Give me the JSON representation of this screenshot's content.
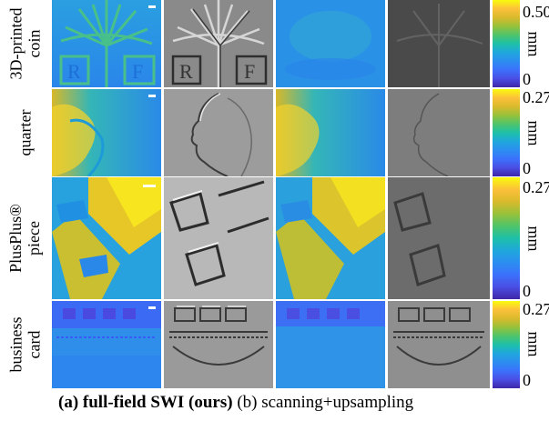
{
  "figure": {
    "rows": [
      {
        "id": "coin",
        "label_lines": [
          "3D-printed",
          "coin"
        ],
        "cbar_max": "0.50",
        "cbar_min": "0",
        "unit": "mm"
      },
      {
        "id": "quarter",
        "label_lines": [
          "quarter"
        ],
        "cbar_max": "0.27",
        "cbar_min": "0",
        "unit": "mm"
      },
      {
        "id": "plusplus",
        "label_lines": [
          "PlusPlus®",
          "piece"
        ],
        "cbar_max": "0.27",
        "cbar_min": "0",
        "unit": "mm"
      },
      {
        "id": "card",
        "label_lines": [
          "business",
          "card"
        ],
        "cbar_max": "0.27",
        "cbar_min": "0",
        "unit": "mm"
      }
    ],
    "caption": {
      "part_a": "(a) full-field SWI (ours)",
      "part_b": "(b) scanning+upsampling"
    },
    "colors": {
      "colormap_top": "#f9fb0e",
      "colormap_mid": "#1ec0a8",
      "colormap_bottom": "#3e26a8"
    }
  }
}
